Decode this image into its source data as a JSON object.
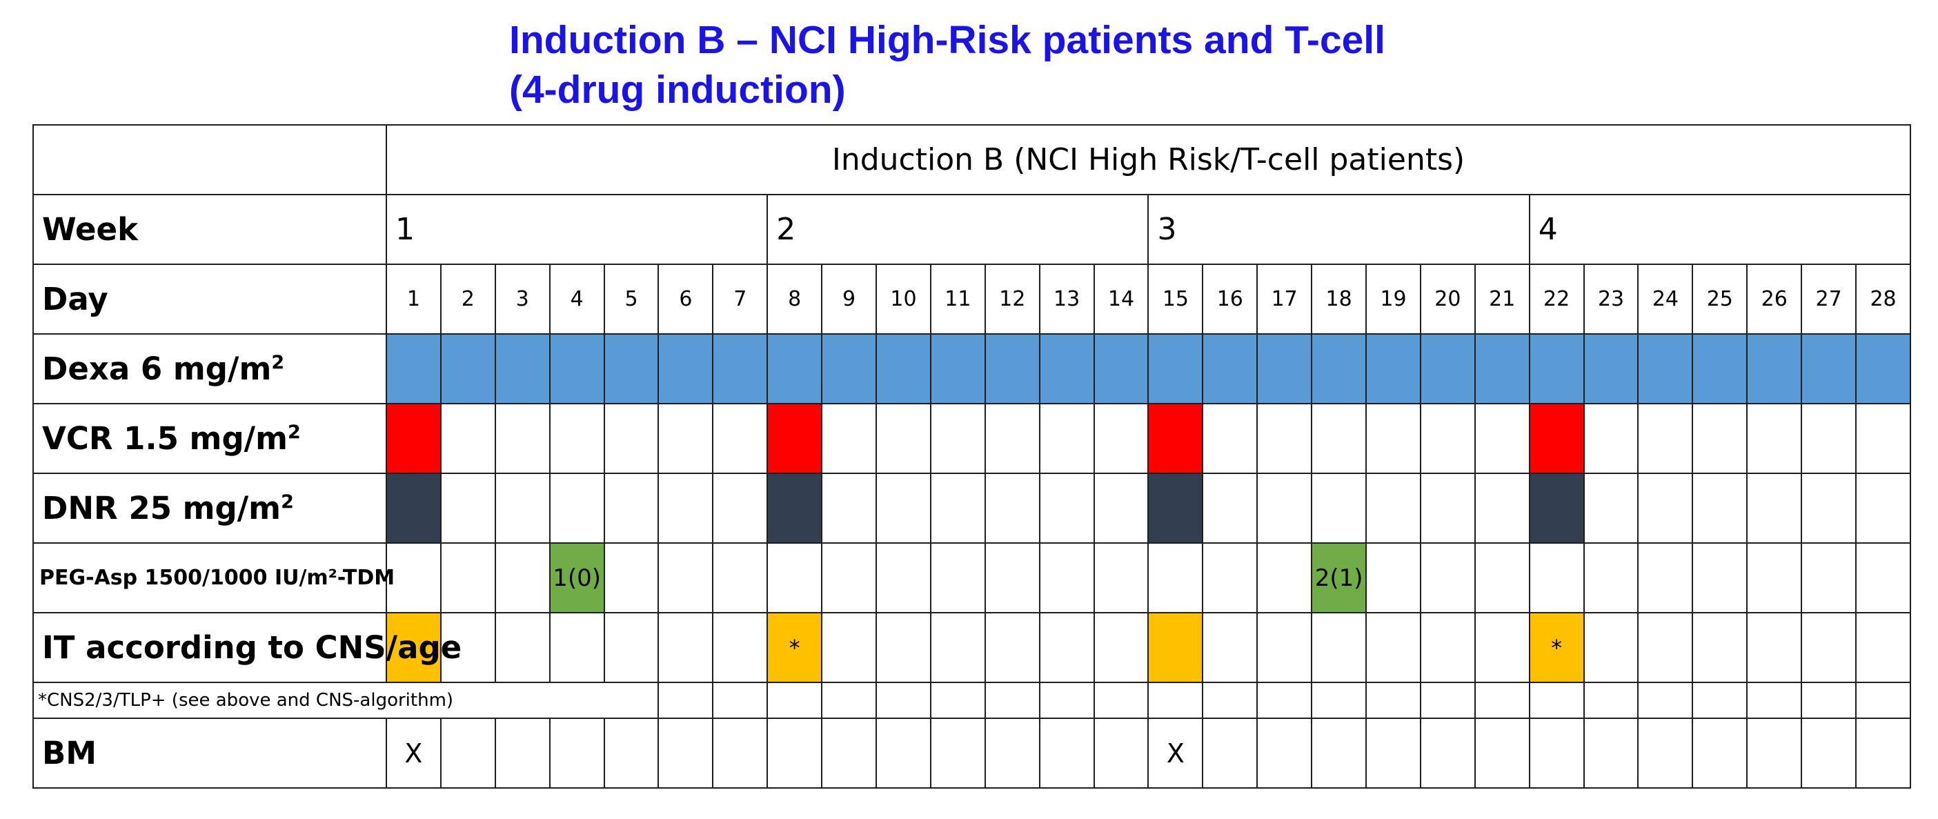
{
  "title": "Induction B – NCI High-Risk patients and T-cell (4-drug induction)",
  "table": {
    "header_label": "Induction B (NCI High Risk/T-cell patients)",
    "week_label": "Week",
    "weeks": [
      "1",
      "2",
      "3",
      "4"
    ],
    "day_label": "Day",
    "days": [
      "1",
      "2",
      "3",
      "4",
      "5",
      "6",
      "7",
      "8",
      "9",
      "10",
      "11",
      "12",
      "13",
      "14",
      "15",
      "16",
      "17",
      "18",
      "19",
      "20",
      "21",
      "22",
      "23",
      "24",
      "25",
      "26",
      "27",
      "28"
    ],
    "rows": {
      "dexa": {
        "label": "Dexa 6 mg/m",
        "sup": "2",
        "color": "#5b9bd5",
        "days": "1-28"
      },
      "vcr": {
        "label": "VCR 1.5 mg/m",
        "sup": "2",
        "color": "#ff0000",
        "days": [
          1,
          8,
          15,
          22
        ]
      },
      "dnr": {
        "label": "DNR 25 mg/m",
        "sup": "2",
        "color": "#333f50",
        "days": [
          1,
          8,
          15,
          22
        ]
      },
      "peg": {
        "label": "PEG-Asp 1500/1000 IU/m²-TDM",
        "color": "#70ad47",
        "day4": "1(0)",
        "day18": "2(1)"
      },
      "it": {
        "label": "IT according to CNS/age",
        "color": "#ffc000",
        "days": [
          1,
          8,
          15,
          22
        ],
        "mark": "*"
      },
      "footnote": {
        "label": "*CNS2/3/TLP+ (see above and CNS-algorithm)"
      },
      "bm": {
        "label": "BM",
        "mark": "X",
        "days": [
          1,
          15
        ]
      }
    }
  }
}
